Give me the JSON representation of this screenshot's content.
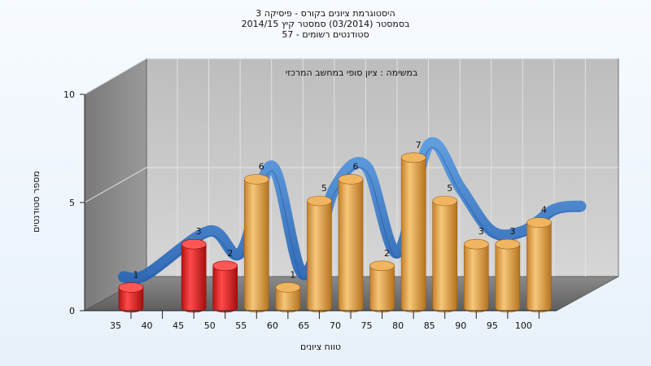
{
  "header": {
    "line1": "היסטוגרמת ציונים בקורס - פיסיקה 3",
    "line2": "בסמסטר  (03/2014)  סמסטר קיץ 2014/15",
    "line3": "סטודנטים רשומים - 57"
  },
  "chart_data": {
    "type": "bar",
    "title": "היסטוגרמת ציונים בקורס - פיסיקה 3",
    "subtitle": "במשימה : ציון סופי במחשב המרכזי",
    "xlabel": "טווח ציונים",
    "ylabel": "מספר סטודנטים",
    "ylim": [
      0,
      10
    ],
    "yticks": [
      0,
      5,
      10
    ],
    "x_ticks": [
      "35",
      "40",
      "45",
      "50",
      "55",
      "60",
      "65",
      "70",
      "75",
      "80",
      "85",
      "90",
      "95",
      "100"
    ],
    "bars": [
      {
        "x": 35,
        "value": 1,
        "group": "fail"
      },
      {
        "x": 45,
        "value": 3,
        "group": "fail"
      },
      {
        "x": 50,
        "value": 2,
        "group": "fail"
      },
      {
        "x": 55,
        "value": 6,
        "group": "pass"
      },
      {
        "x": 60,
        "value": 1,
        "group": "pass"
      },
      {
        "x": 65,
        "value": 5,
        "group": "pass"
      },
      {
        "x": 70,
        "value": 6,
        "group": "pass"
      },
      {
        "x": 75,
        "value": 2,
        "group": "pass"
      },
      {
        "x": 80,
        "value": 7,
        "group": "pass"
      },
      {
        "x": 85,
        "value": 5,
        "group": "pass"
      },
      {
        "x": 90,
        "value": 3,
        "group": "pass"
      },
      {
        "x": 95,
        "value": 3,
        "group": "pass"
      },
      {
        "x": 100,
        "value": 4,
        "group": "pass"
      }
    ],
    "colors": {
      "fail": "#dd1e1e",
      "pass": "#e2a246",
      "curve": "#3a7fcf",
      "wall": "#c8c8c8",
      "side_wall": "#888888",
      "floor": "#6f6f6f"
    }
  }
}
